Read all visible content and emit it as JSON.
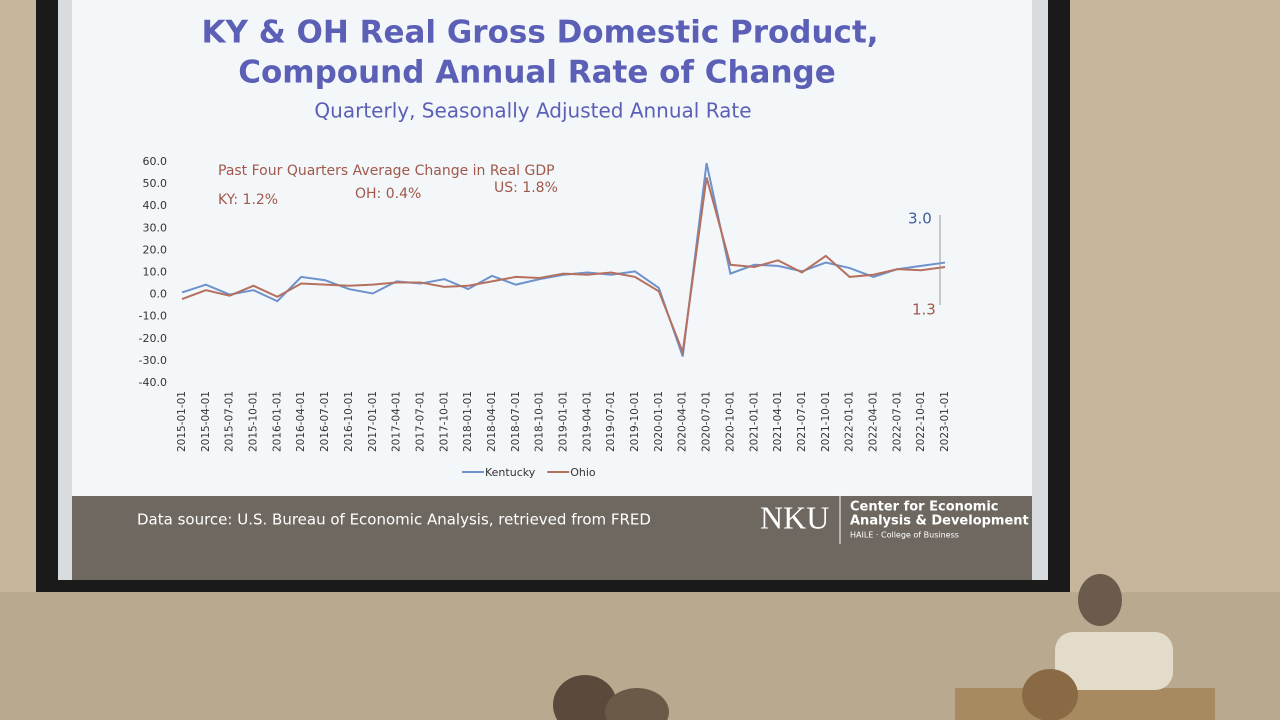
{
  "chart_data": {
    "type": "line",
    "title": [
      "KY & OH Real Gross Domestic Product,",
      "Compound Annual Rate of Change"
    ],
    "subtitle": "Quarterly, Seasonally Adjusted Annual Rate",
    "annotations": [
      "Past Four Quarters Average Change in Real GDP",
      "KY:  1.2%",
      "OH:  0.4%",
      "US: 1.8%",
      "3.0",
      "1.3"
    ],
    "categories": [
      "2015-01-01",
      "2015-04-01",
      "2015-07-01",
      "2015-10-01",
      "2016-01-01",
      "2016-04-01",
      "2016-07-01",
      "2016-10-01",
      "2017-01-01",
      "2017-04-01",
      "2017-07-01",
      "2017-10-01",
      "2018-01-01",
      "2018-04-01",
      "2018-07-01",
      "2018-10-01",
      "2019-01-01",
      "2019-04-01",
      "2019-07-01",
      "2019-10-01",
      "2020-01-01",
      "2020-04-01",
      "2020-07-01",
      "2020-10-01",
      "2021-01-01",
      "2021-04-01",
      "2021-07-01",
      "2021-10-01",
      "2022-01-01",
      "2022-04-01",
      "2022-07-01",
      "2022-10-01",
      "2023-01-01"
    ],
    "series": [
      {
        "name": "Kentucky",
        "color": "#6d92cc",
        "values": [
          1,
          4.5,
          0,
          2,
          -3,
          8,
          6.5,
          2.5,
          0.5,
          6,
          5,
          7,
          2.5,
          8.5,
          4.5,
          7,
          9,
          10,
          9,
          10.5,
          3,
          -28,
          59.5,
          9.5,
          13.5,
          13,
          10.5,
          14.5,
          12,
          8,
          11.5,
          13,
          14.5
        ]
      },
      {
        "name": "Ohio",
        "color": "#b5705f",
        "values": [
          -2,
          2,
          -0.5,
          4,
          -1,
          5,
          4.5,
          4,
          4.5,
          5.5,
          5.5,
          3.5,
          4,
          6,
          8,
          7.5,
          9.5,
          9,
          10,
          8,
          1.5,
          -26,
          53,
          13.5,
          12.5,
          15.5,
          10,
          17.5,
          8,
          9,
          11.5,
          11,
          12.5
        ]
      }
    ],
    "ylim": [
      -40,
      60
    ],
    "yticks": [
      {
        "value": 60,
        "label": "60.0"
      },
      {
        "value": 50,
        "label": "50.0"
      },
      {
        "value": 40,
        "label": "40.0"
      },
      {
        "value": 30,
        "label": "30.0"
      },
      {
        "value": 20,
        "label": "20.0"
      },
      {
        "value": 10,
        "label": "10.0"
      },
      {
        "value": 0,
        "label": "0.0"
      },
      {
        "value": -10,
        "label": "-10.0"
      },
      {
        "value": -20,
        "label": "-20.0"
      },
      {
        "value": -30,
        "label": "-30.0"
      },
      {
        "value": -40,
        "label": "-40.0"
      }
    ],
    "grid": false,
    "legend": "bottom"
  },
  "footer": {
    "source": "Data source: U.S. Bureau of Economic Analysis, retrieved from FRED",
    "brand": "NKU",
    "center": [
      "Center for Economic",
      "Analysis & Development"
    ],
    "college": "HAILE · College of Business"
  }
}
